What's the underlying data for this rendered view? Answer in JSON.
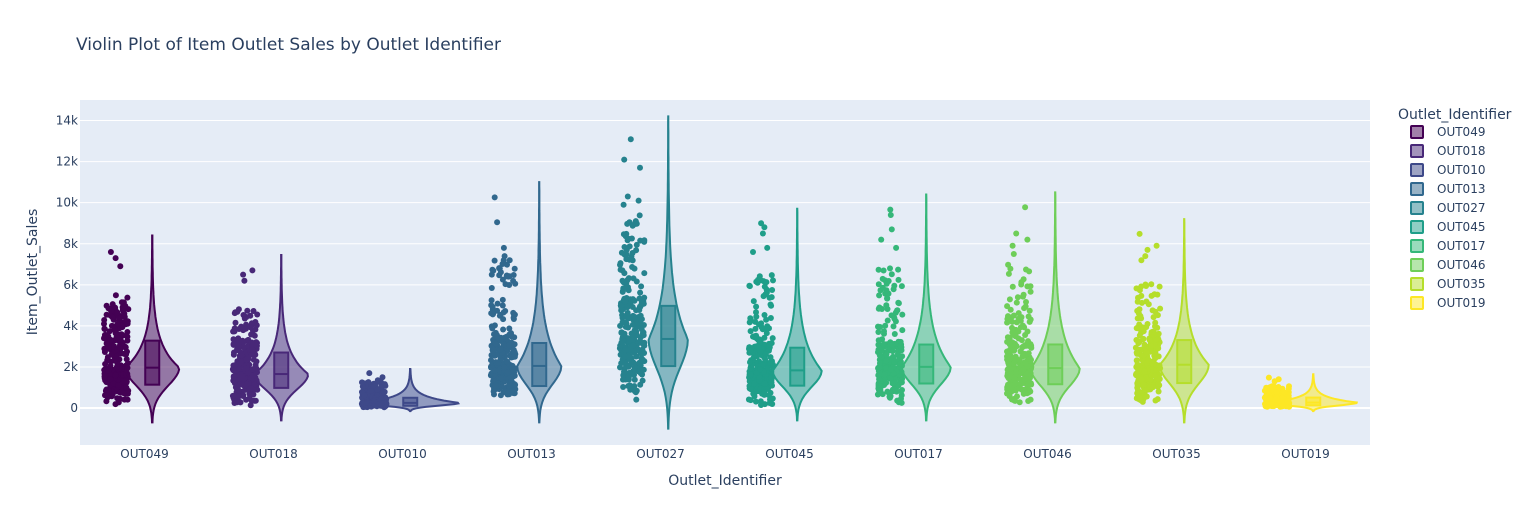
{
  "chart_data": {
    "type": "violin",
    "title": "Violin Plot of Item Outlet Sales by Outlet Identifier",
    "xlabel": "Outlet_Identifier",
    "ylabel": "Item_Outlet_Sales",
    "legend_title": "Outlet_Identifier",
    "legend_position": "right",
    "ylim": [
      -1800,
      15000
    ],
    "yticks": [
      0,
      2000,
      4000,
      6000,
      8000,
      10000,
      12000,
      14000
    ],
    "ytick_labels": [
      "0",
      "2k",
      "4k",
      "6k",
      "8k",
      "10k",
      "12k",
      "14k"
    ],
    "grid": true,
    "categories": [
      "OUT049",
      "OUT018",
      "OUT010",
      "OUT013",
      "OUT027",
      "OUT045",
      "OUT017",
      "OUT046",
      "OUT035",
      "OUT019"
    ],
    "series": [
      {
        "name": "OUT049",
        "color": "#440154",
        "min": 111,
        "q1": 1137,
        "median": 1966,
        "q3": 3281,
        "max": 7646,
        "kde_min": -700,
        "kde_max": 8400,
        "density_width": 0.55,
        "extra_points": [
          7300,
          7600,
          6900
        ]
      },
      {
        "name": "OUT018",
        "color": "#482878",
        "min": 69,
        "q1": 981,
        "median": 1655,
        "q3": 2703,
        "max": 6768,
        "kde_min": -600,
        "kde_max": 7450,
        "density_width": 0.55,
        "extra_points": [
          6500,
          6700,
          6200
        ]
      },
      {
        "name": "OUT010",
        "color": "#3e4989",
        "min": 33,
        "q1": 111,
        "median": 251,
        "q3": 500,
        "max": 1775,
        "kde_min": -150,
        "kde_max": 1900,
        "density_width": 1.0,
        "extra_points": [
          1700,
          1500,
          1350
        ]
      },
      {
        "name": "OUT013",
        "color": "#31688e",
        "min": 73,
        "q1": 1072,
        "median": 2050,
        "q3": 3167,
        "max": 10256,
        "kde_min": -700,
        "kde_max": 11000,
        "density_width": 0.45,
        "extra_points": [
          10256,
          9050,
          7800,
          7400,
          7200
        ]
      },
      {
        "name": "OUT027",
        "color": "#26828e",
        "min": 241,
        "q1": 2041,
        "median": 3364,
        "q3": 4975,
        "max": 13087,
        "kde_min": -1000,
        "kde_max": 14200,
        "density_width": 0.4,
        "extra_points": [
          13087,
          12100,
          11700,
          10300,
          10100,
          9900
        ]
      },
      {
        "name": "OUT045",
        "color": "#1f9e89",
        "min": 99,
        "q1": 1090,
        "median": 1834,
        "q3": 2938,
        "max": 8994,
        "kde_min": -600,
        "kde_max": 9700,
        "density_width": 0.5,
        "extra_points": [
          8994,
          8800,
          8500,
          7800,
          7600
        ]
      },
      {
        "name": "OUT017",
        "color": "#35b779",
        "min": 143,
        "q1": 1195,
        "median": 2005,
        "q3": 3092,
        "max": 9664,
        "kde_min": -600,
        "kde_max": 10400,
        "density_width": 0.5,
        "extra_points": [
          9664,
          9400,
          8700,
          8200,
          7800
        ]
      },
      {
        "name": "OUT046",
        "color": "#6ece58",
        "min": 101,
        "q1": 1159,
        "median": 1945,
        "q3": 3095,
        "max": 9779,
        "kde_min": -700,
        "kde_max": 10500,
        "density_width": 0.5,
        "extra_points": [
          9779,
          8500,
          8200,
          7900,
          7500
        ]
      },
      {
        "name": "OUT035",
        "color": "#b5de2b",
        "min": 99,
        "q1": 1216,
        "median": 2109,
        "q3": 3310,
        "max": 8479,
        "kde_min": -700,
        "kde_max": 9200,
        "density_width": 0.5,
        "extra_points": [
          8479,
          7900,
          7700,
          7400,
          7200
        ]
      },
      {
        "name": "OUT019",
        "color": "#fde725",
        "min": 36,
        "q1": 138,
        "median": 266,
        "q3": 510,
        "max": 1482,
        "kde_min": -150,
        "kde_max": 1650,
        "density_width": 0.9,
        "extra_points": [
          1482,
          1400,
          1300
        ]
      }
    ]
  }
}
